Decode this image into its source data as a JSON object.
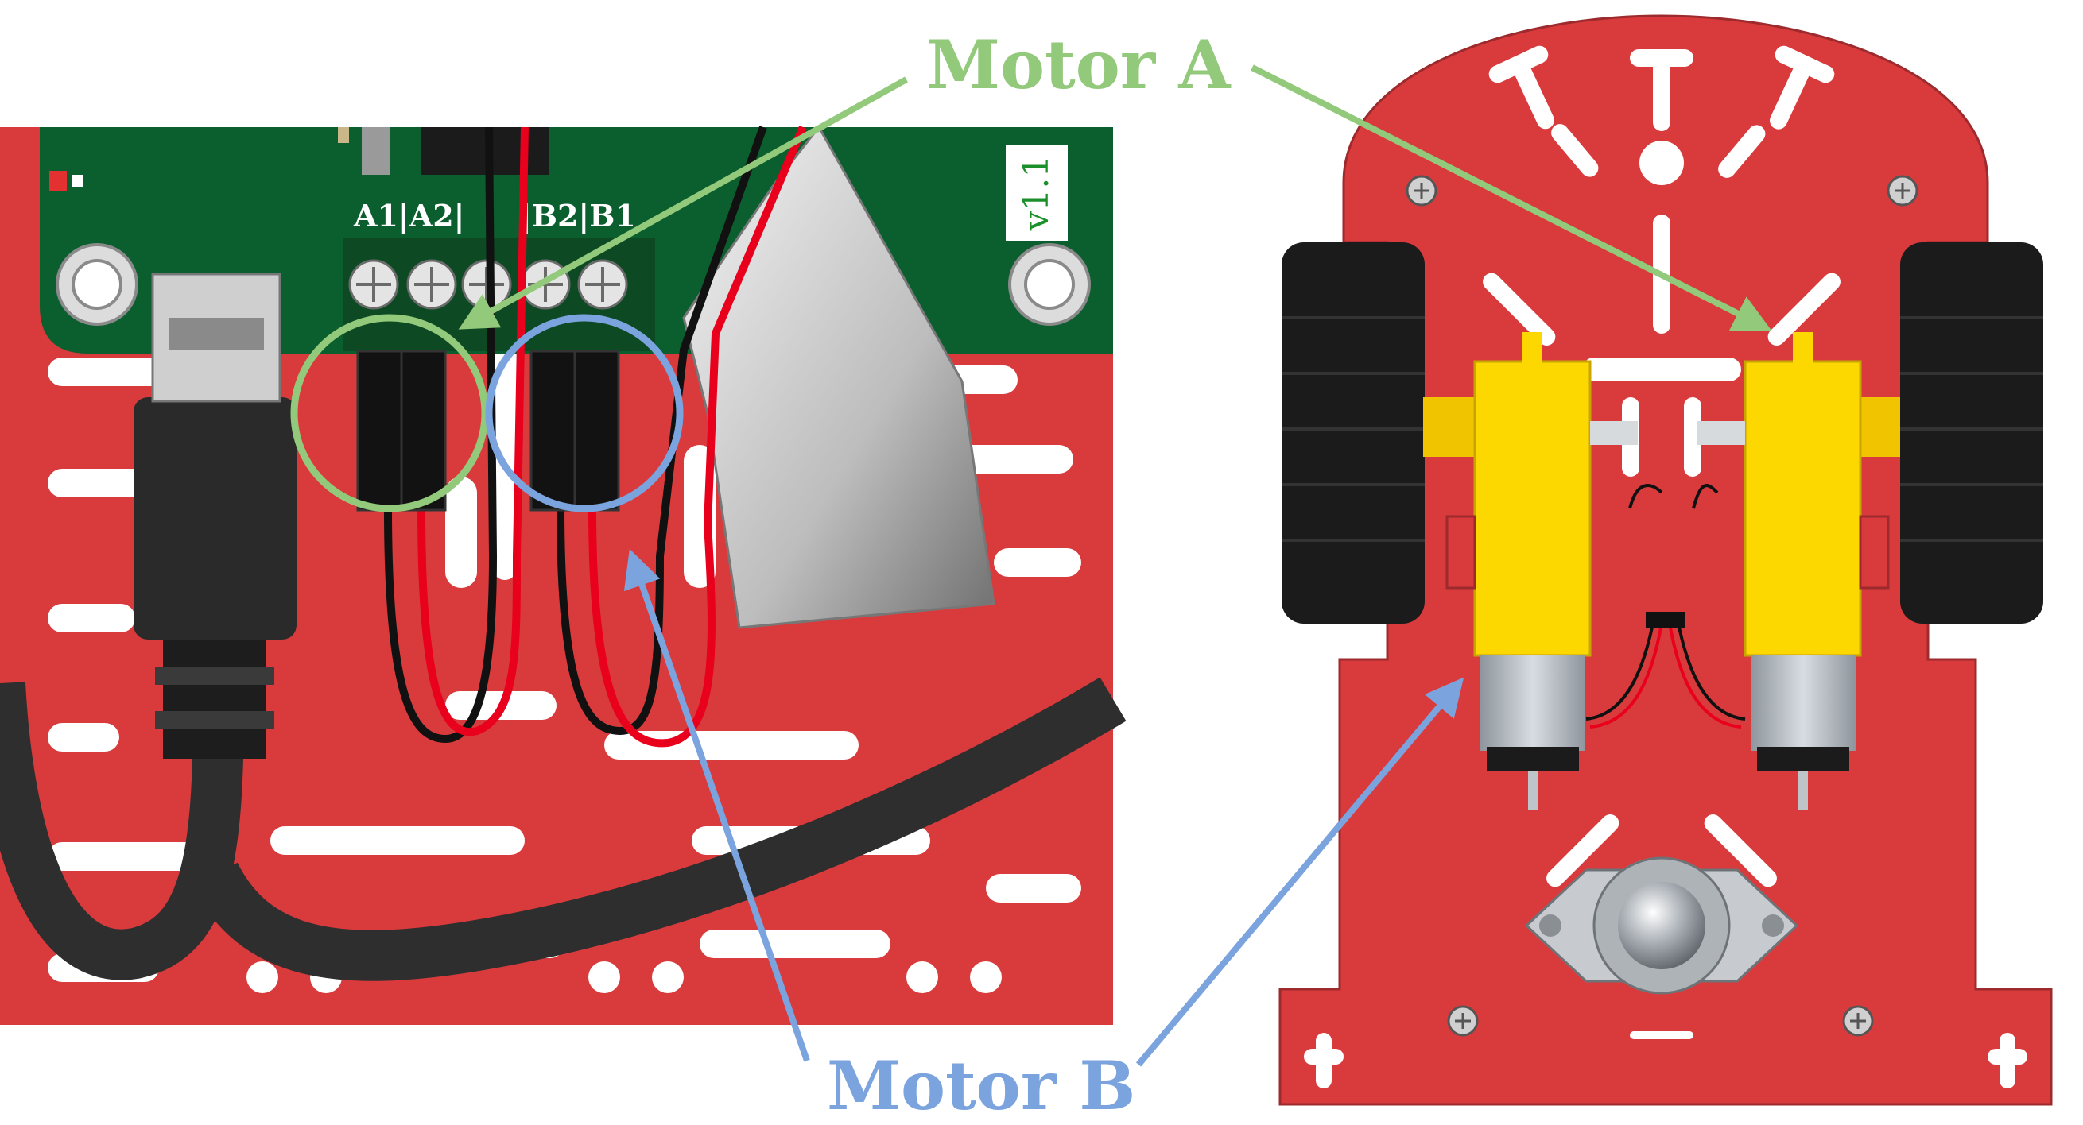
{
  "callouts": {
    "motor_a": "Motor A",
    "motor_b": "Motor B"
  },
  "board": {
    "terminal_label_a": "A1|A2|",
    "terminal_label_b": "|B2|B1",
    "version": "v1.1"
  },
  "colors": {
    "motor_a": "#93c97a",
    "motor_b": "#7ba3de",
    "chassis": "#d93b3d",
    "pcb": "#0b5e2e",
    "motor_body": "#fdd700",
    "tire": "#1b1b1b",
    "wire_red": "#e8001c",
    "wire_black": "#111111"
  },
  "icons": [
    "board-mounting-screw-icon",
    "usb-cable-icon",
    "caster-ball-icon"
  ]
}
